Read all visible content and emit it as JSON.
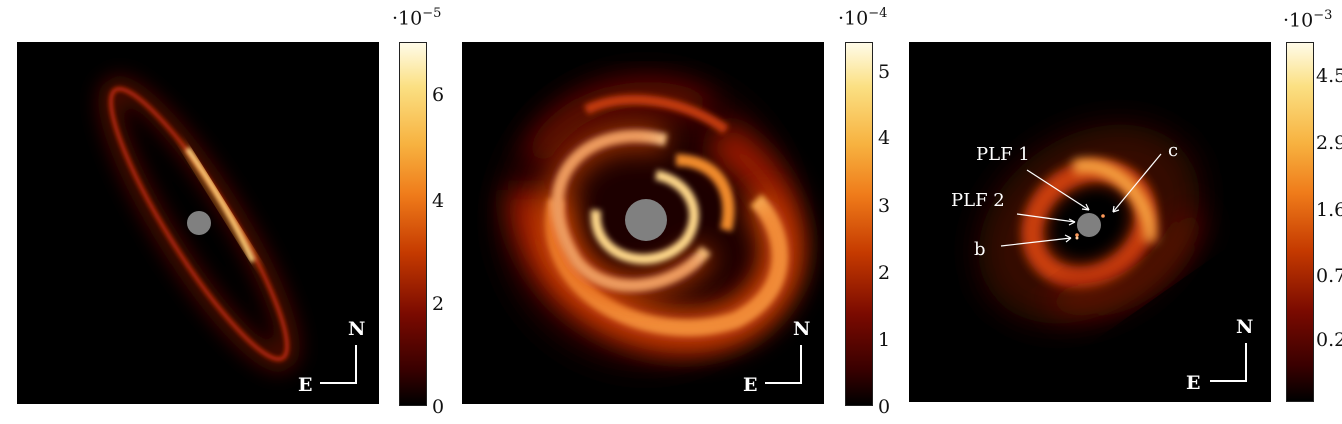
{
  "panels": [
    {
      "colorbar": {
        "exponent": "·10",
        "exponent_power": "−5",
        "ticks": [
          "6",
          "4",
          "2",
          "0"
        ]
      },
      "compass": {
        "north": "N",
        "east": "E"
      }
    },
    {
      "colorbar": {
        "exponent": "·10",
        "exponent_power": "−4",
        "ticks": [
          "5",
          "4",
          "3",
          "2",
          "1",
          "0"
        ]
      },
      "compass": {
        "north": "N",
        "east": "E"
      }
    },
    {
      "colorbar": {
        "exponent": "·10",
        "exponent_power": "−3",
        "ticks": [
          "4.5",
          "2.9",
          "1.6",
          "0.7",
          "0.2"
        ]
      },
      "compass": {
        "north": "N",
        "east": "E"
      },
      "annotations": [
        "PLF 1",
        "PLF 2",
        "b",
        "c"
      ]
    }
  ],
  "colors": {
    "mask": "#808080",
    "background": "#000000"
  },
  "icons": [
    "compass-arrow-icon",
    "coronagraph-mask-icon"
  ]
}
